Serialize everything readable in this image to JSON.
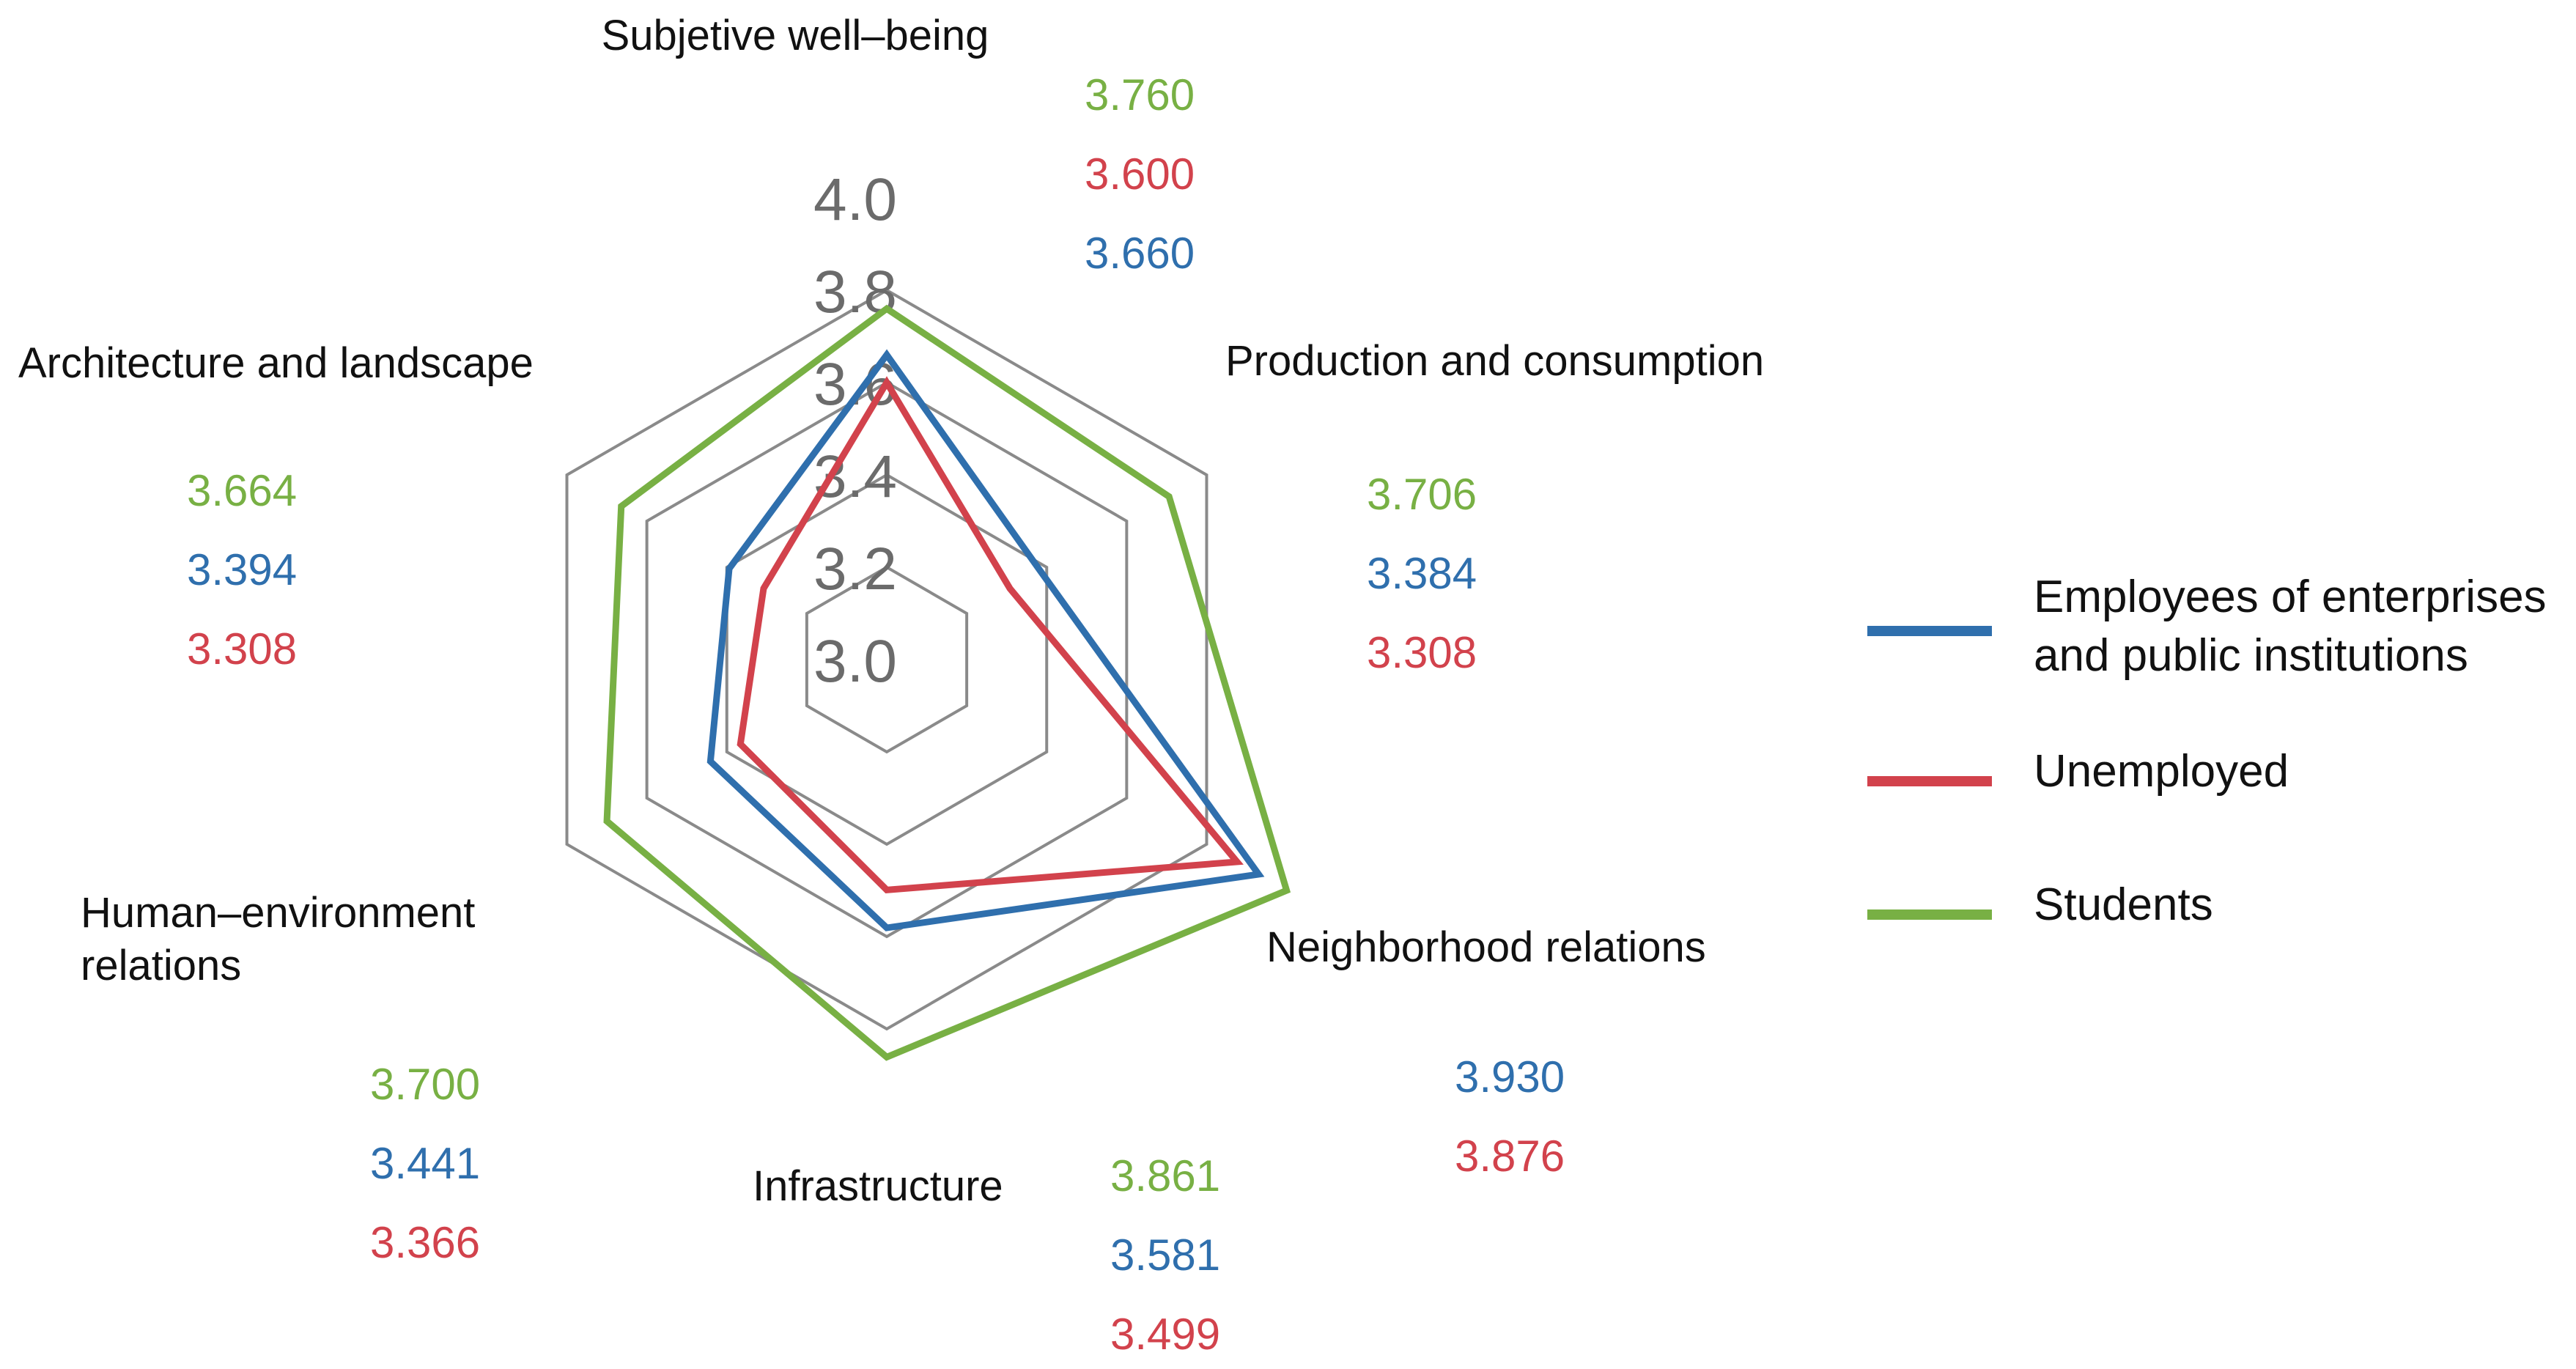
{
  "chart_data": {
    "type": "radar",
    "title": "",
    "r_range": [
      3.0,
      4.0
    ],
    "r_ticks": [
      "3.0",
      "3.2",
      "3.4",
      "3.6",
      "3.8",
      "4.0"
    ],
    "categories": [
      {
        "label": "Subjetive well–being"
      },
      {
        "label": "Production and consumption"
      },
      {
        "label": "Neighborhood relations"
      },
      {
        "label": "Infrastructure"
      },
      {
        "label": "Human–environment",
        "label2": "relations"
      },
      {
        "label": "Architecture and landscape"
      }
    ],
    "series": [
      {
        "name": "Employees of enterprises",
        "name2": "and public institutions",
        "color": "#2f6fad",
        "values": [
          3.66,
          3.384,
          3.93,
          3.581,
          3.441,
          3.394
        ],
        "value_labels": [
          "3.660",
          "3.384",
          "3.930",
          "3.581",
          "3.441",
          "3.394"
        ]
      },
      {
        "name": "Unemployed",
        "color": "#d2424c",
        "values": [
          3.6,
          3.308,
          3.876,
          3.499,
          3.366,
          3.308
        ],
        "value_labels": [
          "3.600",
          "3.308",
          "3.876",
          "3.499",
          "3.366",
          "3.308"
        ]
      },
      {
        "name": "Students",
        "color": "#78b044",
        "values": [
          3.76,
          3.706,
          4.0,
          3.861,
          3.7,
          3.664
        ],
        "value_labels": [
          "3.760",
          "3.706",
          "",
          "3.861",
          "3.700",
          "3.664"
        ]
      }
    ],
    "legend_position": "right",
    "grid_color": "#8a8a8a"
  }
}
